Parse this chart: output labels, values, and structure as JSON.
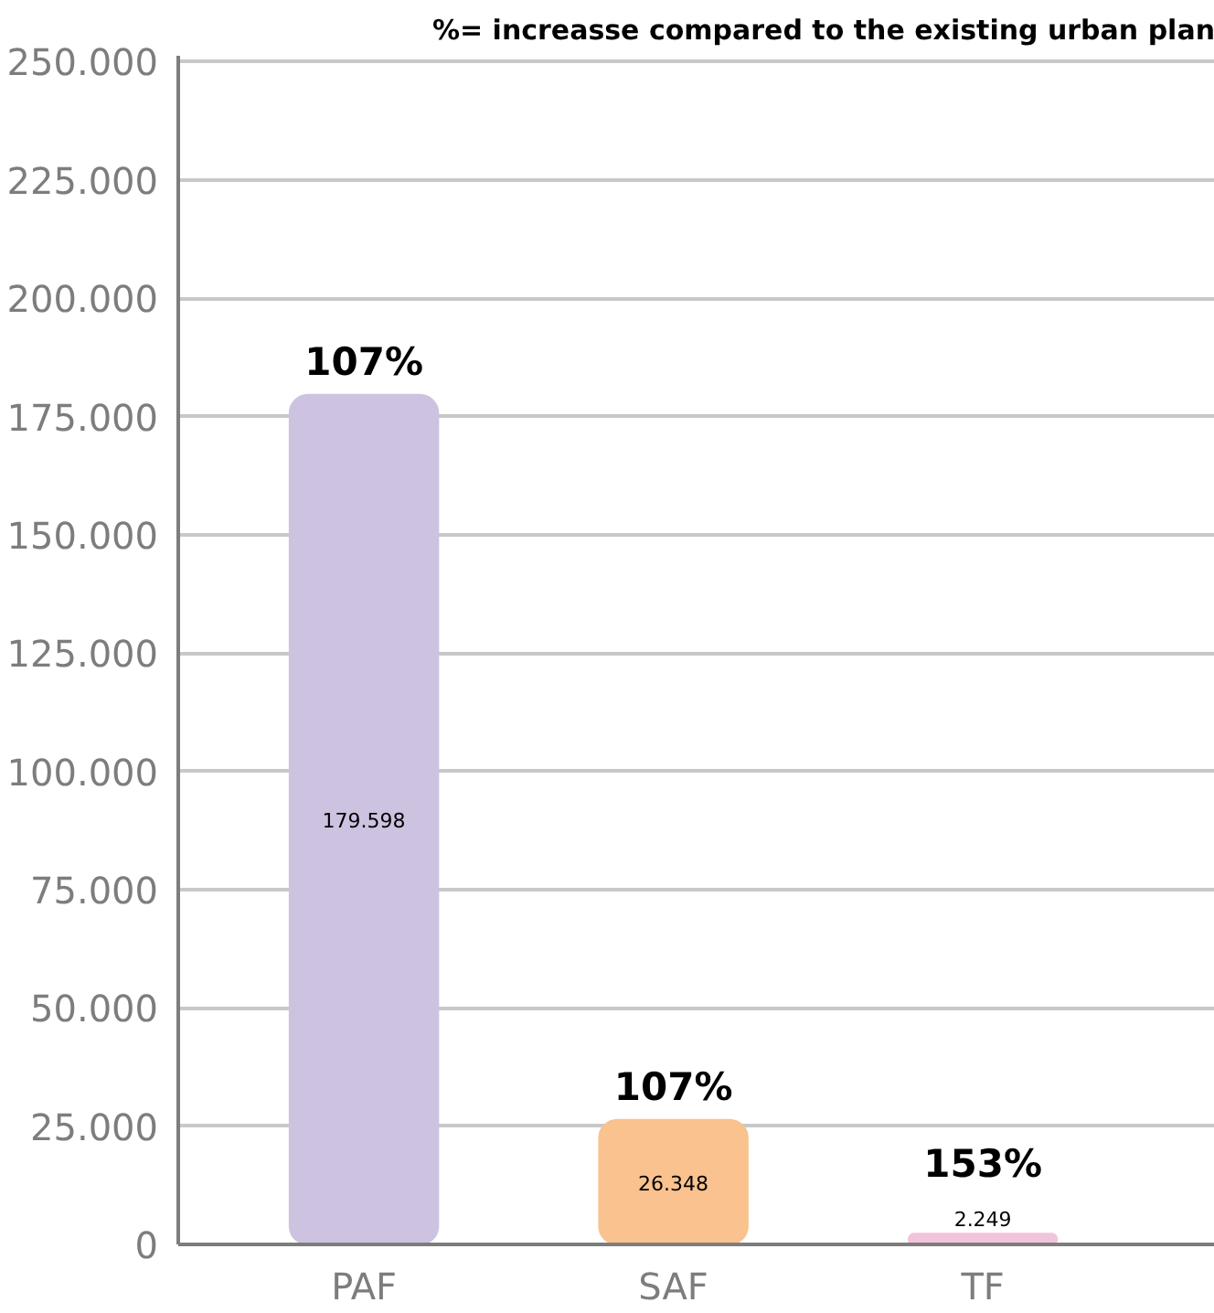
{
  "chart_data": {
    "type": "bar",
    "title": "%= increasse compared to the existing urban plan",
    "categories": [
      "PAF",
      "SAF",
      "TF"
    ],
    "values": [
      179598,
      26348,
      2249
    ],
    "value_labels": [
      "179.598",
      "26.348",
      "2.249"
    ],
    "colors": [
      "#cdc3e0",
      "#f9c28e",
      "#f2c4dc"
    ],
    "annotations": [
      {
        "text": "107%",
        "x": "PAF",
        "y": 179598
      },
      {
        "text": "107%",
        "x": "SAF",
        "y": 26348
      },
      {
        "text": "153%",
        "x": "TF",
        "y": 2249
      }
    ],
    "ylim": [
      0,
      250000
    ],
    "yticks": [
      {
        "value": 0,
        "label": "0"
      },
      {
        "value": 25000,
        "label": "25.000"
      },
      {
        "value": 50000,
        "label": "50.000"
      },
      {
        "value": 75000,
        "label": "75.000"
      },
      {
        "value": 100000,
        "label": "100.000"
      },
      {
        "value": 125000,
        "label": "125.000"
      },
      {
        "value": 150000,
        "label": "150.000"
      },
      {
        "value": 175000,
        "label": "175.000"
      },
      {
        "value": 200000,
        "label": "200.000"
      },
      {
        "value": 225000,
        "label": "225.000"
      },
      {
        "value": 250000,
        "label": "250.000"
      }
    ],
    "grid": "y"
  }
}
